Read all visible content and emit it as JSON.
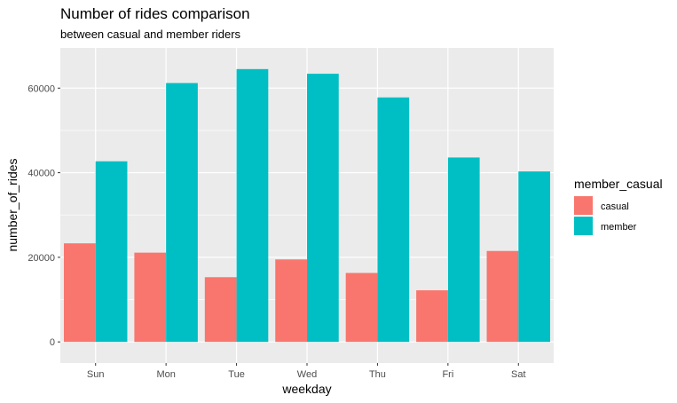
{
  "chart_data": {
    "type": "bar",
    "title": "Number of rides comparison",
    "subtitle": "between casual and member riders",
    "xlabel": "weekday",
    "ylabel": "number_of_rides",
    "categories": [
      "Sun",
      "Mon",
      "Tue",
      "Wed",
      "Thu",
      "Fri",
      "Sat"
    ],
    "series": [
      {
        "name": "casual",
        "color": "#F8766D",
        "values": [
          23300,
          21100,
          15300,
          19500,
          16300,
          12200,
          21500
        ]
      },
      {
        "name": "member",
        "color": "#00BFC4",
        "values": [
          42700,
          61200,
          64500,
          63400,
          57800,
          43600,
          40300
        ]
      }
    ],
    "ylim": [
      -5000,
      69500
    ],
    "yticks": [
      0,
      20000,
      40000,
      60000
    ],
    "ytick_labels": [
      "0",
      "20000",
      "40000",
      "60000"
    ],
    "grid": true,
    "panel_background": "#EBEBEB",
    "legend": {
      "title": "member_casual",
      "position": "right"
    }
  }
}
